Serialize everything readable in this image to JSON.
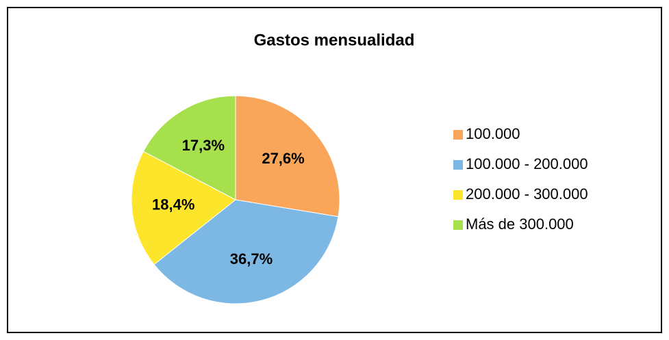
{
  "chart_data": {
    "type": "pie",
    "title": "Gastos mensualidad",
    "categories": [
      "100.000",
      "100.000 - 200.000",
      "200.000 - 300.000",
      "Más de 300.000"
    ],
    "values": [
      27.6,
      36.7,
      18.4,
      17.3
    ],
    "value_labels": [
      "27,6%",
      "36,7%",
      "18,4%",
      "17,3%"
    ],
    "colors": [
      "#f9a65a",
      "#7db8e4",
      "#fde52b",
      "#a6e04c"
    ],
    "legend": "right"
  }
}
